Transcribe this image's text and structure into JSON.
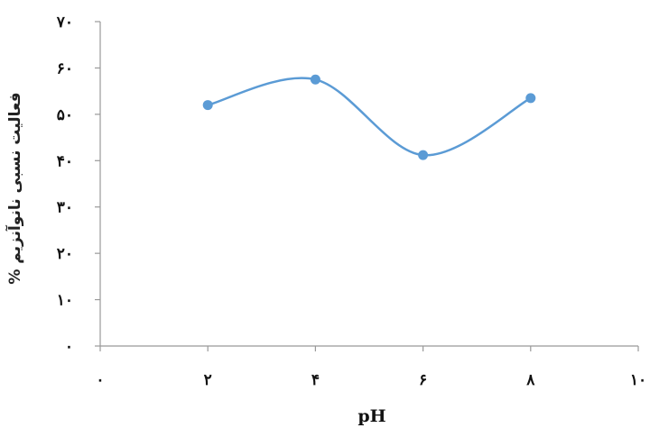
{
  "chart_data": {
    "type": "line",
    "smooth": true,
    "xlabel": "pH",
    "ylabel": "% فعالیت نسبی نانوآنزیم",
    "x": [
      2,
      4,
      6,
      8
    ],
    "series": [
      {
        "values": [
          52,
          57.5,
          41.2,
          53.5
        ],
        "color": "#5b9bd5"
      }
    ],
    "xlim": [
      0,
      10
    ],
    "ylim": [
      0,
      70
    ],
    "x_ticks": [
      0,
      2,
      4,
      6,
      8,
      10
    ],
    "x_tick_labels": [
      "۰",
      "۲",
      "۴",
      "۶",
      "۸",
      "۱۰"
    ],
    "y_ticks": [
      0,
      10,
      20,
      30,
      40,
      50,
      60,
      70
    ],
    "y_tick_labels": [
      "۰",
      "۱۰",
      "۲۰",
      "۳۰",
      "۴۰",
      "۵۰",
      "۶۰",
      "۷۰"
    ],
    "grid": false,
    "legend": "none"
  }
}
